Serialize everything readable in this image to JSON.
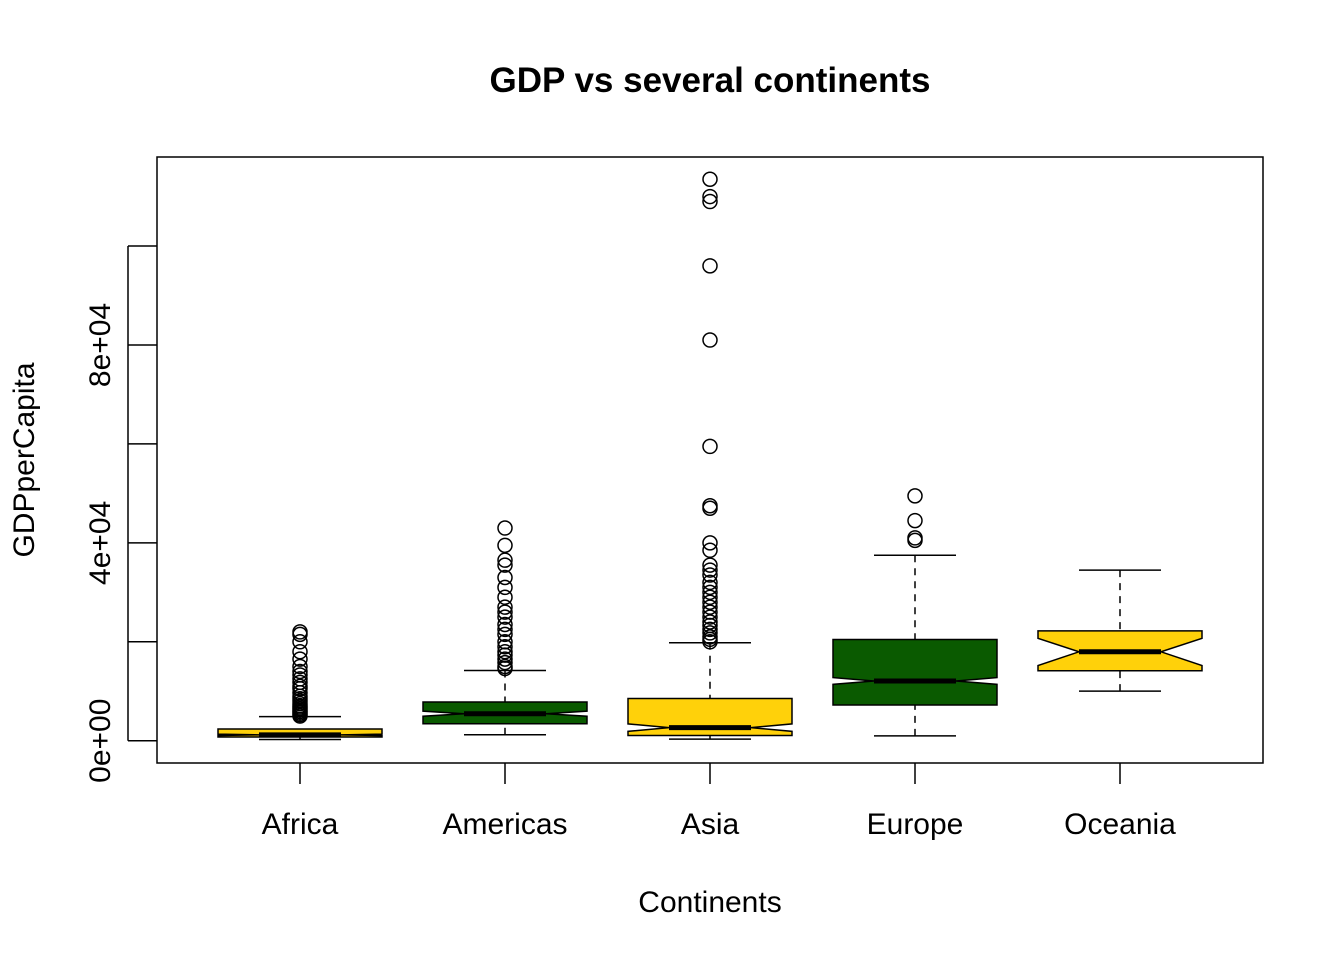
{
  "chart_data": {
    "type": "box",
    "title": "GDP vs several continents",
    "xlabel": "Continents",
    "ylabel": "GDPperCapita",
    "notched": true,
    "ylim": [
      -4500,
      118000
    ],
    "yticks": [
      0,
      20000,
      40000,
      60000,
      80000,
      100000
    ],
    "ytick_labels": [
      "0e+00",
      "",
      "4e+04",
      "",
      "8e+04",
      ""
    ],
    "colors": {
      "gold": "#ffd10a",
      "green": "#0a5a00",
      "outline": "#000000"
    },
    "categories": [
      "Africa",
      "Americas",
      "Asia",
      "Europe",
      "Oceania"
    ],
    "boxes": [
      {
        "name": "Africa",
        "color": "#ffd10a",
        "whisker_low": 241,
        "q1": 761,
        "median": 1192,
        "q3": 2377,
        "whisker_high": 4880,
        "notch": [
          1060,
          1325
        ],
        "outliers": [
          5000,
          5300,
          5600,
          5900,
          6200,
          6500,
          6800,
          7100,
          7500,
          8000,
          8500,
          9000,
          9700,
          10500,
          11000,
          11800,
          12500,
          13300,
          14000,
          15000,
          16500,
          18000,
          20000,
          21500,
          22000
        ]
      },
      {
        "name": "Americas",
        "color": "#0a5a00",
        "whisker_low": 1202,
        "q1": 3428,
        "median": 5466,
        "q3": 7830,
        "whisker_high": 14200,
        "notch": [
          4950,
          5980
        ],
        "outliers": [
          14600,
          15000,
          15800,
          16500,
          17300,
          18000,
          19000,
          20000,
          21500,
          22500,
          23500,
          25000,
          26000,
          27000,
          29000,
          31000,
          33000,
          35500,
          36500,
          39500,
          43000
        ]
      },
      {
        "name": "Asia",
        "color": "#ffd10a",
        "whisker_low": 331,
        "q1": 1057,
        "median": 2647,
        "q3": 8549,
        "whisker_high": 19800,
        "notch": [
          1900,
          3400
        ],
        "outliers": [
          20000,
          20500,
          21000,
          21800,
          22500,
          23300,
          24000,
          25000,
          26000,
          27000,
          28000,
          29000,
          30000,
          31000,
          32000,
          33500,
          34500,
          35500,
          38500,
          40000,
          47000,
          47500,
          59500,
          81000,
          96000,
          109000,
          110000,
          113500
        ]
      },
      {
        "name": "Europe",
        "color": "#0a5a00",
        "whisker_low": 973,
        "q1": 7213,
        "median": 12082,
        "q3": 20461,
        "whisker_high": 37500,
        "notch": [
          11400,
          12760
        ],
        "outliers": [
          40500,
          41000,
          44500,
          49500
        ]
      },
      {
        "name": "Oceania",
        "color": "#ffd10a",
        "whisker_low": 10040,
        "q1": 14142,
        "median": 17983,
        "q3": 22214,
        "whisker_high": 34500,
        "notch": [
          15200,
          20700
        ],
        "outliers": []
      }
    ]
  }
}
